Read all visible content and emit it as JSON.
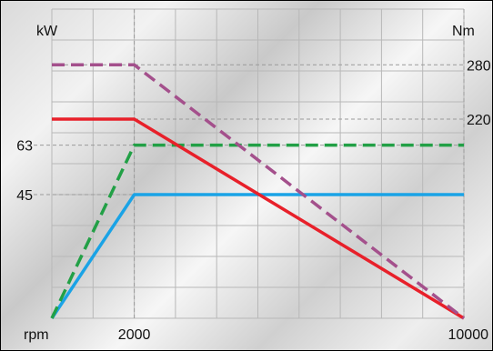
{
  "chart_data": {
    "type": "line",
    "title": "",
    "xlabel": "rpm",
    "ylabel_left": "kW",
    "ylabel_right": "Nm",
    "x_ticks": [
      2000,
      10000
    ],
    "x_tick_labels": [
      "2000",
      "10000"
    ],
    "y_left_ticks": [
      45,
      63
    ],
    "y_left_tick_labels": [
      "45",
      "63"
    ],
    "y_right_ticks": [
      220,
      280
    ],
    "y_right_tick_labels": [
      "220",
      "280"
    ],
    "xlim": [
      0,
      10000
    ],
    "grid": true,
    "series": [
      {
        "color": "#1aa3e6",
        "dash": "solid",
        "axis": "left",
        "x": [
          0,
          2000,
          10000
        ],
        "y": [
          0,
          45,
          45
        ]
      },
      {
        "color": "#22a046",
        "dash": "dashed",
        "axis": "left",
        "x": [
          0,
          2000,
          10000
        ],
        "y": [
          0,
          63,
          63
        ]
      },
      {
        "color": "#e8202a",
        "dash": "solid",
        "axis": "right",
        "x": [
          0,
          2000,
          10000
        ],
        "y": [
          220,
          220,
          0
        ]
      },
      {
        "color": "#a4508c",
        "dash": "dashed",
        "axis": "right",
        "x": [
          0,
          2000,
          10000
        ],
        "y": [
          280,
          280,
          0
        ]
      }
    ]
  },
  "labels": {
    "x_axis": "rpm",
    "y_left": "kW",
    "y_right": "Nm"
  }
}
